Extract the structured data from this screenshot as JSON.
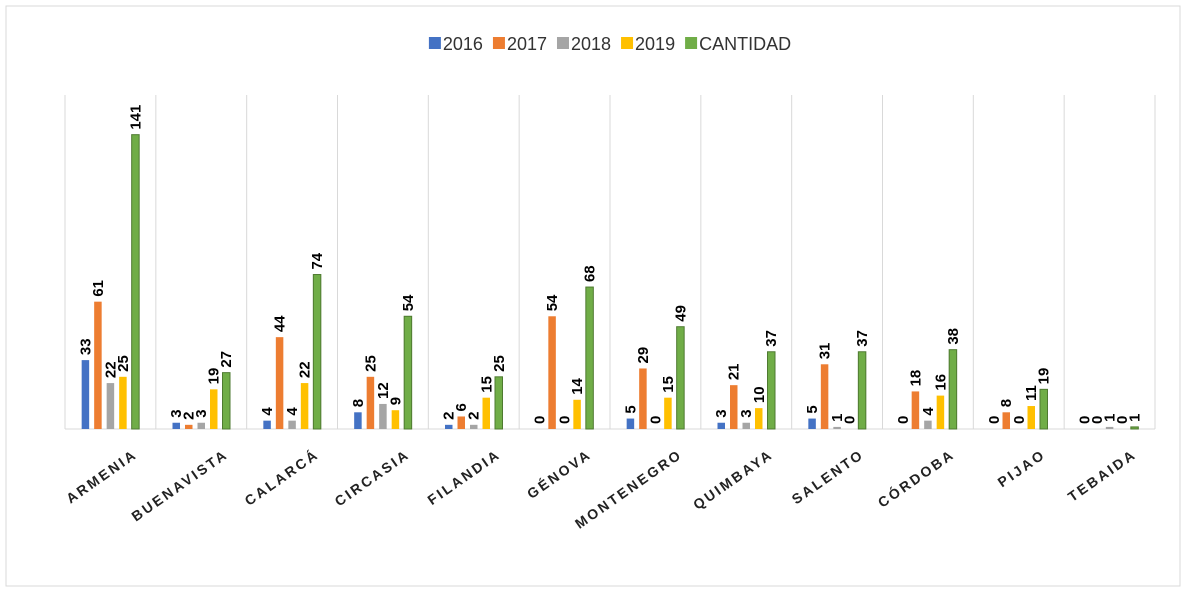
{
  "chart_data": {
    "type": "bar",
    "categories": [
      "ARMENIA",
      "BUENAVISTA",
      "CALARCÁ",
      "CIRCASIA",
      "FILANDIA",
      "GÉNOVA",
      "MONTENEGRO",
      "QUIMBAYA",
      "SALENTO",
      "CÓRDOBA",
      "PIJAO",
      "TEBAIDA"
    ],
    "series": [
      {
        "name": "2016",
        "color": "#4472c4",
        "values": [
          33,
          3,
          4,
          8,
          2,
          0,
          5,
          3,
          5,
          0,
          0,
          0
        ]
      },
      {
        "name": "2017",
        "color": "#ed7d31",
        "values": [
          61,
          2,
          44,
          25,
          6,
          54,
          29,
          21,
          31,
          18,
          8,
          0
        ]
      },
      {
        "name": "2018",
        "color": "#a5a5a5",
        "values": [
          22,
          3,
          4,
          12,
          2,
          0,
          0,
          3,
          1,
          4,
          0,
          1
        ]
      },
      {
        "name": "2019",
        "color": "#ffc000",
        "values": [
          25,
          19,
          22,
          9,
          15,
          14,
          15,
          10,
          0,
          16,
          11,
          0
        ]
      },
      {
        "name": "CANTIDAD",
        "color": "#70ad47",
        "values": [
          141,
          27,
          74,
          54,
          25,
          68,
          49,
          37,
          37,
          38,
          19,
          1
        ]
      }
    ],
    "ylim": [
      0,
      160
    ],
    "legend": "top"
  }
}
